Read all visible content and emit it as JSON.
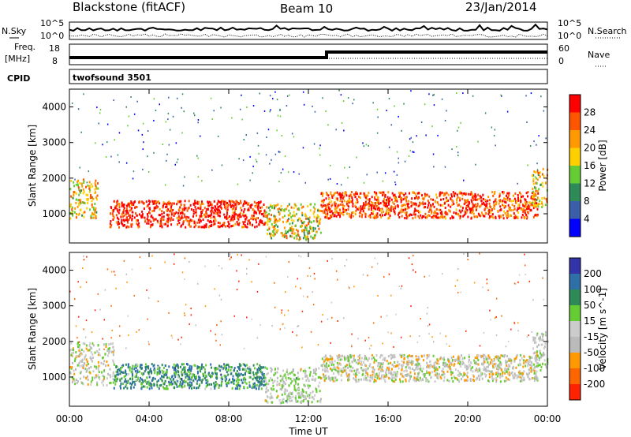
{
  "header": {
    "title": "Blackstone (fitACF)",
    "beam": "Beam 10",
    "date": "23/Jan/2014"
  },
  "params": {
    "nsky_label": "N.Sky",
    "nsky_ticks": [
      "10^5",
      "10^0"
    ],
    "nsearch_label": "N.Search",
    "freq_label": "Freq.",
    "freq_unit": "[MHz]",
    "freq_ticks": [
      "18",
      "8"
    ],
    "nave_label": "Nave",
    "nave_ticks": [
      "60",
      "0"
    ],
    "cpid_label": "CPID",
    "cpid_value": "twofsound 3501"
  },
  "colors": {
    "power_scale": [
      "#0000ff",
      "#3a5fa8",
      "#2e8b57",
      "#66cc33",
      "#ffd000",
      "#ff9900",
      "#ff5500",
      "#ff0000"
    ],
    "velocity_scale": [
      "#3333aa",
      "#2f6fa8",
      "#2e8b57",
      "#66cc33",
      "#cccccc",
      "#bbbbbb",
      "#ff9900",
      "#ff6600",
      "#ff2200"
    ]
  },
  "chart_data": [
    {
      "type": "heatmap",
      "panel": "power",
      "xlabel": "",
      "ylabel": "Slant Range [km]",
      "x_ticks": [
        "00:00",
        "04:00",
        "08:00",
        "12:00",
        "16:00",
        "20:00",
        "00:00"
      ],
      "y_ticks": [
        "1000",
        "2000",
        "3000",
        "4000"
      ],
      "xlim": [
        0,
        24
      ],
      "ylim": [
        180,
        4500
      ],
      "colorbar_label": "Power [dB]",
      "colorbar_ticks": [
        "28",
        "24",
        "20",
        "16",
        "12",
        "8",
        "4"
      ],
      "bands": [
        {
          "t0": 0.0,
          "t1": 1.4,
          "r0": 900,
          "r1": 2000,
          "level": 0.6
        },
        {
          "t0": 2.0,
          "t1": 9.8,
          "r0": 650,
          "r1": 1400,
          "level": 0.95
        },
        {
          "t0": 9.8,
          "t1": 12.6,
          "r0": 300,
          "r1": 1300,
          "level": 0.55
        },
        {
          "t0": 12.6,
          "t1": 23.5,
          "r0": 900,
          "r1": 1650,
          "level": 0.85
        },
        {
          "t0": 23.2,
          "t1": 24.0,
          "r0": 1200,
          "r1": 2300,
          "level": 0.6
        }
      ]
    },
    {
      "type": "heatmap",
      "panel": "velocity",
      "xlabel": "Time UT",
      "ylabel": "Slant Range [km]",
      "x_ticks": [
        "00:00",
        "04:00",
        "08:00",
        "12:00",
        "16:00",
        "20:00",
        "00:00"
      ],
      "y_ticks": [
        "1000",
        "2000",
        "3000",
        "4000"
      ],
      "xlim": [
        0,
        24
      ],
      "ylim": [
        180,
        4500
      ],
      "colorbar_label": "Velocity [m s^-1]",
      "colorbar_ticks": [
        "200",
        "100",
        "50",
        "15",
        "-15",
        "-50",
        "-100",
        "-200"
      ],
      "bands": [
        {
          "t0": 0.0,
          "t1": 2.2,
          "r0": 800,
          "r1": 2000,
          "level": 0.45
        },
        {
          "t0": 2.2,
          "t1": 9.8,
          "r0": 700,
          "r1": 1400,
          "level": 0.72
        },
        {
          "t0": 9.8,
          "t1": 12.6,
          "r0": 300,
          "r1": 1300,
          "level": 0.5
        },
        {
          "t0": 12.6,
          "t1": 23.5,
          "r0": 900,
          "r1": 1650,
          "level": 0.45
        },
        {
          "t0": 23.2,
          "t1": 24.0,
          "r0": 1200,
          "r1": 2300,
          "level": 0.5
        }
      ]
    }
  ]
}
